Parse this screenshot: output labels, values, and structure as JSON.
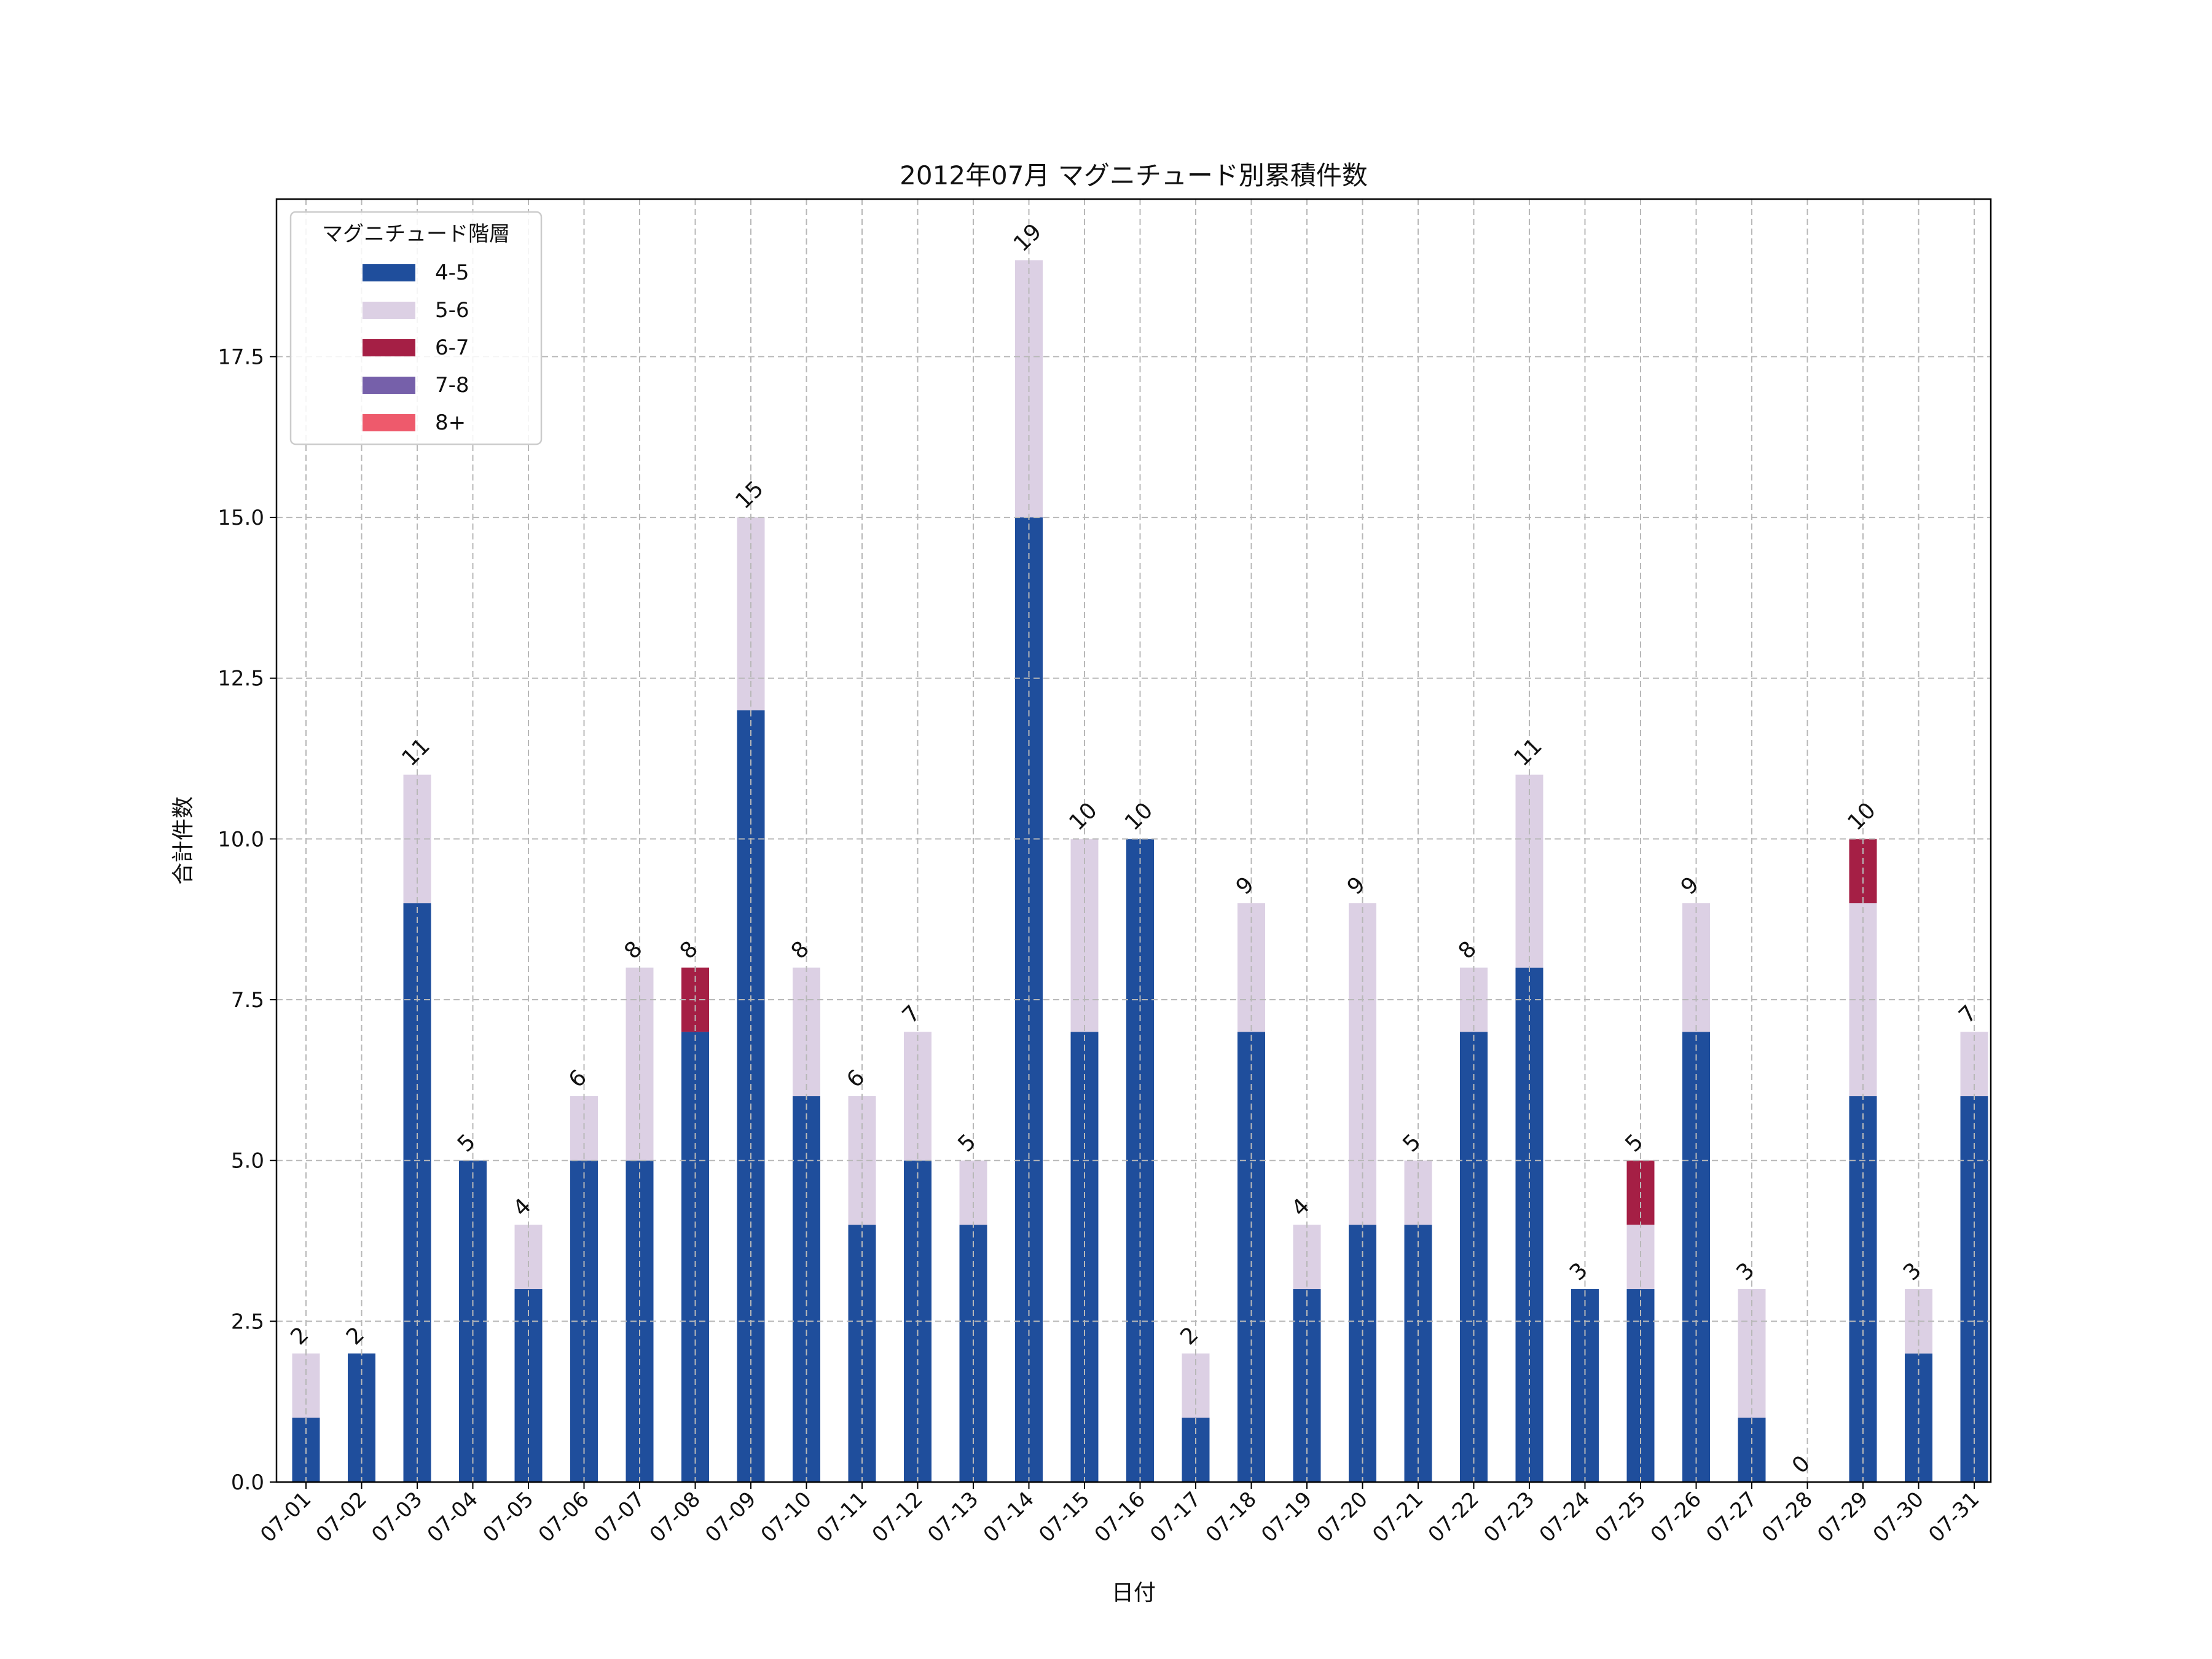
{
  "chart_data": {
    "type": "bar",
    "stacked": true,
    "title": "2012年07月 マグニチュード別累積件数",
    "xlabel": "日付",
    "ylabel": "合計件数",
    "ylim": [
      0,
      19.95
    ],
    "yticks": [
      "0.0",
      "2.5",
      "5.0",
      "7.5",
      "10.0",
      "12.5",
      "15.0",
      "17.5"
    ],
    "grid": true,
    "legend": {
      "title": "マグニチュード階層",
      "placement": "top-left"
    },
    "categories": [
      "07-01",
      "07-02",
      "07-03",
      "07-04",
      "07-05",
      "07-06",
      "07-07",
      "07-08",
      "07-09",
      "07-10",
      "07-11",
      "07-12",
      "07-13",
      "07-14",
      "07-15",
      "07-16",
      "07-17",
      "07-18",
      "07-19",
      "07-20",
      "07-21",
      "07-22",
      "07-23",
      "07-24",
      "07-25",
      "07-26",
      "07-27",
      "07-28",
      "07-29",
      "07-30",
      "07-31"
    ],
    "series": [
      {
        "name": "4-5",
        "color": "#1f4e9c",
        "values": [
          1,
          2,
          9,
          5,
          3,
          5,
          5,
          7,
          12,
          6,
          4,
          5,
          4,
          15,
          7,
          10,
          1,
          7,
          3,
          4,
          4,
          7,
          8,
          3,
          3,
          7,
          1,
          0,
          6,
          2,
          6
        ]
      },
      {
        "name": "5-6",
        "color": "#dcd0e4",
        "values": [
          1,
          0,
          2,
          0,
          1,
          1,
          3,
          0,
          3,
          2,
          2,
          2,
          1,
          4,
          3,
          0,
          1,
          2,
          1,
          5,
          1,
          1,
          3,
          0,
          1,
          2,
          2,
          0,
          3,
          1,
          1
        ]
      },
      {
        "name": "6-7",
        "color": "#a51f45",
        "values": [
          0,
          0,
          0,
          0,
          0,
          0,
          0,
          1,
          0,
          0,
          0,
          0,
          0,
          0,
          0,
          0,
          0,
          0,
          0,
          0,
          0,
          0,
          0,
          0,
          1,
          0,
          0,
          0,
          1,
          0,
          0
        ]
      },
      {
        "name": "7-8",
        "color": "#7660aa",
        "values": [
          0,
          0,
          0,
          0,
          0,
          0,
          0,
          0,
          0,
          0,
          0,
          0,
          0,
          0,
          0,
          0,
          0,
          0,
          0,
          0,
          0,
          0,
          0,
          0,
          0,
          0,
          0,
          0,
          0,
          0,
          0
        ]
      },
      {
        "name": "8+",
        "color": "#ee5a6c",
        "values": [
          0,
          0,
          0,
          0,
          0,
          0,
          0,
          0,
          0,
          0,
          0,
          0,
          0,
          0,
          0,
          0,
          0,
          0,
          0,
          0,
          0,
          0,
          0,
          0,
          0,
          0,
          0,
          0,
          0,
          0,
          0
        ]
      }
    ],
    "totals": [
      2,
      2,
      11,
      5,
      4,
      6,
      8,
      8,
      15,
      8,
      6,
      7,
      5,
      19,
      10,
      10,
      2,
      9,
      4,
      9,
      5,
      8,
      11,
      3,
      5,
      9,
      3,
      0,
      10,
      3,
      7
    ]
  }
}
